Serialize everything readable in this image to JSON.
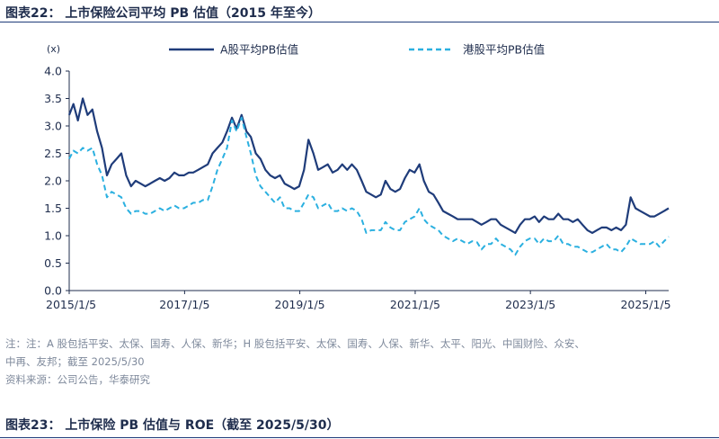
{
  "figure": {
    "title": "图表22：  上市保险公司平均 PB 估值（2015 年至今）"
  },
  "chart_data": {
    "type": "line",
    "unit_label": "(x)",
    "xlabel": "",
    "ylabel": "",
    "ylim": [
      0,
      4.0
    ],
    "yticks": [
      "0.0",
      "0.5",
      "1.0",
      "1.5",
      "2.0",
      "2.5",
      "3.0",
      "3.5",
      "4.0"
    ],
    "xlim": [
      "2015/1/5",
      "2025/5/30"
    ],
    "xticks": [
      "2015/1/5",
      "2017/1/5",
      "2019/1/5",
      "2021/1/5",
      "2023/1/5",
      "2025/1/5"
    ],
    "grid": false,
    "legend_position": "top",
    "series": [
      {
        "name": "A股平均PB估值",
        "color": "#1f3c7a",
        "style": "solid",
        "points": [
          [
            "2015/1/5",
            3.2
          ],
          [
            "2015/2/1",
            3.4
          ],
          [
            "2015/3/1",
            3.1
          ],
          [
            "2015/4/1",
            3.5
          ],
          [
            "2015/5/1",
            3.2
          ],
          [
            "2015/6/1",
            3.3
          ],
          [
            "2015/7/1",
            2.9
          ],
          [
            "2015/8/1",
            2.6
          ],
          [
            "2015/9/1",
            2.1
          ],
          [
            "2015/10/1",
            2.3
          ],
          [
            "2015/11/1",
            2.4
          ],
          [
            "2015/12/1",
            2.5
          ],
          [
            "2016/1/1",
            2.1
          ],
          [
            "2016/2/1",
            1.9
          ],
          [
            "2016/3/1",
            2.0
          ],
          [
            "2016/4/1",
            1.95
          ],
          [
            "2016/5/1",
            1.9
          ],
          [
            "2016/6/1",
            1.95
          ],
          [
            "2016/7/1",
            2.0
          ],
          [
            "2016/8/1",
            2.05
          ],
          [
            "2016/9/1",
            2.0
          ],
          [
            "2016/10/1",
            2.05
          ],
          [
            "2016/11/1",
            2.15
          ],
          [
            "2016/12/1",
            2.1
          ],
          [
            "2017/1/1",
            2.1
          ],
          [
            "2017/2/1",
            2.15
          ],
          [
            "2017/3/1",
            2.15
          ],
          [
            "2017/4/1",
            2.2
          ],
          [
            "2017/5/1",
            2.25
          ],
          [
            "2017/6/1",
            2.3
          ],
          [
            "2017/7/1",
            2.5
          ],
          [
            "2017/8/1",
            2.6
          ],
          [
            "2017/9/1",
            2.7
          ],
          [
            "2017/10/1",
            2.9
          ],
          [
            "2017/11/1",
            3.15
          ],
          [
            "2017/12/1",
            2.95
          ],
          [
            "2018/1/1",
            3.2
          ],
          [
            "2018/2/1",
            2.9
          ],
          [
            "2018/3/1",
            2.8
          ],
          [
            "2018/4/1",
            2.5
          ],
          [
            "2018/5/1",
            2.4
          ],
          [
            "2018/6/1",
            2.2
          ],
          [
            "2018/7/1",
            2.1
          ],
          [
            "2018/8/1",
            2.05
          ],
          [
            "2018/9/1",
            2.1
          ],
          [
            "2018/10/1",
            1.95
          ],
          [
            "2018/11/1",
            1.9
          ],
          [
            "2018/12/1",
            1.85
          ],
          [
            "2019/1/1",
            1.9
          ],
          [
            "2019/2/1",
            2.2
          ],
          [
            "2019/3/1",
            2.75
          ],
          [
            "2019/4/1",
            2.5
          ],
          [
            "2019/5/1",
            2.2
          ],
          [
            "2019/6/1",
            2.25
          ],
          [
            "2019/7/1",
            2.3
          ],
          [
            "2019/8/1",
            2.15
          ],
          [
            "2019/9/1",
            2.2
          ],
          [
            "2019/10/1",
            2.3
          ],
          [
            "2019/11/1",
            2.2
          ],
          [
            "2019/12/1",
            2.3
          ],
          [
            "2020/1/1",
            2.2
          ],
          [
            "2020/2/1",
            2.0
          ],
          [
            "2020/3/1",
            1.8
          ],
          [
            "2020/4/1",
            1.75
          ],
          [
            "2020/5/1",
            1.7
          ],
          [
            "2020/6/1",
            1.75
          ],
          [
            "2020/7/1",
            2.0
          ],
          [
            "2020/8/1",
            1.85
          ],
          [
            "2020/9/1",
            1.8
          ],
          [
            "2020/10/1",
            1.85
          ],
          [
            "2020/11/1",
            2.05
          ],
          [
            "2020/12/1",
            2.2
          ],
          [
            "2021/1/1",
            2.15
          ],
          [
            "2021/2/1",
            2.3
          ],
          [
            "2021/3/1",
            2.0
          ],
          [
            "2021/4/1",
            1.8
          ],
          [
            "2021/5/1",
            1.75
          ],
          [
            "2021/6/1",
            1.6
          ],
          [
            "2021/7/1",
            1.45
          ],
          [
            "2021/8/1",
            1.4
          ],
          [
            "2021/9/1",
            1.35
          ],
          [
            "2021/10/1",
            1.3
          ],
          [
            "2021/11/1",
            1.3
          ],
          [
            "2021/12/1",
            1.3
          ],
          [
            "2022/1/1",
            1.3
          ],
          [
            "2022/2/1",
            1.25
          ],
          [
            "2022/3/1",
            1.2
          ],
          [
            "2022/4/1",
            1.25
          ],
          [
            "2022/5/1",
            1.3
          ],
          [
            "2022/6/1",
            1.3
          ],
          [
            "2022/7/1",
            1.2
          ],
          [
            "2022/8/1",
            1.15
          ],
          [
            "2022/9/1",
            1.1
          ],
          [
            "2022/10/1",
            1.05
          ],
          [
            "2022/11/1",
            1.2
          ],
          [
            "2022/12/1",
            1.3
          ],
          [
            "2023/1/1",
            1.3
          ],
          [
            "2023/2/1",
            1.35
          ],
          [
            "2023/3/1",
            1.25
          ],
          [
            "2023/4/1",
            1.35
          ],
          [
            "2023/5/1",
            1.3
          ],
          [
            "2023/6/1",
            1.3
          ],
          [
            "2023/7/1",
            1.4
          ],
          [
            "2023/8/1",
            1.3
          ],
          [
            "2023/9/1",
            1.3
          ],
          [
            "2023/10/1",
            1.25
          ],
          [
            "2023/11/1",
            1.3
          ],
          [
            "2023/12/1",
            1.2
          ],
          [
            "2024/1/1",
            1.1
          ],
          [
            "2024/2/1",
            1.05
          ],
          [
            "2024/3/1",
            1.1
          ],
          [
            "2024/4/1",
            1.15
          ],
          [
            "2024/5/1",
            1.15
          ],
          [
            "2024/6/1",
            1.1
          ],
          [
            "2024/7/1",
            1.15
          ],
          [
            "2024/8/1",
            1.1
          ],
          [
            "2024/9/1",
            1.2
          ],
          [
            "2024/10/1",
            1.7
          ],
          [
            "2024/11/1",
            1.5
          ],
          [
            "2024/12/1",
            1.45
          ],
          [
            "2025/1/1",
            1.4
          ],
          [
            "2025/2/1",
            1.35
          ],
          [
            "2025/3/1",
            1.35
          ],
          [
            "2025/4/1",
            1.4
          ],
          [
            "2025/5/1",
            1.45
          ],
          [
            "2025/5/30",
            1.5
          ]
        ]
      },
      {
        "name": "港股平均PB估值",
        "color": "#2bb0e0",
        "style": "dashed",
        "points": [
          [
            "2015/1/5",
            2.4
          ],
          [
            "2015/2/1",
            2.55
          ],
          [
            "2015/3/1",
            2.5
          ],
          [
            "2015/4/1",
            2.6
          ],
          [
            "2015/5/1",
            2.55
          ],
          [
            "2015/6/1",
            2.6
          ],
          [
            "2015/7/1",
            2.3
          ],
          [
            "2015/8/1",
            2.1
          ],
          [
            "2015/9/1",
            1.7
          ],
          [
            "2015/10/1",
            1.8
          ],
          [
            "2015/11/1",
            1.75
          ],
          [
            "2015/12/1",
            1.7
          ],
          [
            "2016/1/1",
            1.5
          ],
          [
            "2016/2/1",
            1.4
          ],
          [
            "2016/3/1",
            1.45
          ],
          [
            "2016/4/1",
            1.45
          ],
          [
            "2016/5/1",
            1.4
          ],
          [
            "2016/6/1",
            1.4
          ],
          [
            "2016/7/1",
            1.45
          ],
          [
            "2016/8/1",
            1.5
          ],
          [
            "2016/9/1",
            1.45
          ],
          [
            "2016/10/1",
            1.5
          ],
          [
            "2016/11/1",
            1.55
          ],
          [
            "2016/12/1",
            1.5
          ],
          [
            "2017/1/1",
            1.5
          ],
          [
            "2017/2/1",
            1.55
          ],
          [
            "2017/3/1",
            1.6
          ],
          [
            "2017/4/1",
            1.6
          ],
          [
            "2017/5/1",
            1.65
          ],
          [
            "2017/6/1",
            1.65
          ],
          [
            "2017/7/1",
            1.9
          ],
          [
            "2017/8/1",
            2.2
          ],
          [
            "2017/9/1",
            2.4
          ],
          [
            "2017/10/1",
            2.6
          ],
          [
            "2017/11/1",
            3.1
          ],
          [
            "2017/12/1",
            2.9
          ],
          [
            "2018/1/1",
            3.15
          ],
          [
            "2018/2/1",
            2.8
          ],
          [
            "2018/3/1",
            2.5
          ],
          [
            "2018/4/1",
            2.1
          ],
          [
            "2018/5/1",
            1.9
          ],
          [
            "2018/6/1",
            1.8
          ],
          [
            "2018/7/1",
            1.7
          ],
          [
            "2018/8/1",
            1.6
          ],
          [
            "2018/9/1",
            1.7
          ],
          [
            "2018/10/1",
            1.5
          ],
          [
            "2018/11/1",
            1.5
          ],
          [
            "2018/12/1",
            1.45
          ],
          [
            "2019/1/1",
            1.45
          ],
          [
            "2019/2/1",
            1.6
          ],
          [
            "2019/3/1",
            1.75
          ],
          [
            "2019/4/1",
            1.7
          ],
          [
            "2019/5/1",
            1.5
          ],
          [
            "2019/6/1",
            1.55
          ],
          [
            "2019/7/1",
            1.6
          ],
          [
            "2019/8/1",
            1.45
          ],
          [
            "2019/9/1",
            1.45
          ],
          [
            "2019/10/1",
            1.5
          ],
          [
            "2019/11/1",
            1.45
          ],
          [
            "2019/12/1",
            1.5
          ],
          [
            "2020/1/1",
            1.45
          ],
          [
            "2020/2/1",
            1.3
          ],
          [
            "2020/3/1",
            1.05
          ],
          [
            "2020/4/1",
            1.1
          ],
          [
            "2020/5/1",
            1.1
          ],
          [
            "2020/6/1",
            1.1
          ],
          [
            "2020/7/1",
            1.25
          ],
          [
            "2020/8/1",
            1.15
          ],
          [
            "2020/9/1",
            1.1
          ],
          [
            "2020/10/1",
            1.1
          ],
          [
            "2020/11/1",
            1.25
          ],
          [
            "2020/12/1",
            1.3
          ],
          [
            "2021/1/1",
            1.35
          ],
          [
            "2021/2/1",
            1.5
          ],
          [
            "2021/3/1",
            1.3
          ],
          [
            "2021/4/1",
            1.2
          ],
          [
            "2021/5/1",
            1.15
          ],
          [
            "2021/6/1",
            1.1
          ],
          [
            "2021/7/1",
            1.0
          ],
          [
            "2021/8/1",
            0.95
          ],
          [
            "2021/9/1",
            0.9
          ],
          [
            "2021/10/1",
            0.95
          ],
          [
            "2021/11/1",
            0.9
          ],
          [
            "2021/12/1",
            0.85
          ],
          [
            "2022/1/1",
            0.9
          ],
          [
            "2022/2/1",
            0.88
          ],
          [
            "2022/3/1",
            0.75
          ],
          [
            "2022/4/1",
            0.85
          ],
          [
            "2022/5/1",
            0.85
          ],
          [
            "2022/6/1",
            0.95
          ],
          [
            "2022/7/1",
            0.85
          ],
          [
            "2022/8/1",
            0.8
          ],
          [
            "2022/9/1",
            0.75
          ],
          [
            "2022/10/1",
            0.65
          ],
          [
            "2022/11/1",
            0.8
          ],
          [
            "2022/12/1",
            0.9
          ],
          [
            "2023/1/1",
            0.95
          ],
          [
            "2023/2/1",
            0.95
          ],
          [
            "2023/3/1",
            0.85
          ],
          [
            "2023/4/1",
            0.95
          ],
          [
            "2023/5/1",
            0.9
          ],
          [
            "2023/6/1",
            0.9
          ],
          [
            "2023/7/1",
            1.0
          ],
          [
            "2023/8/1",
            0.85
          ],
          [
            "2023/9/1",
            0.85
          ],
          [
            "2023/10/1",
            0.8
          ],
          [
            "2023/11/1",
            0.8
          ],
          [
            "2023/12/1",
            0.75
          ],
          [
            "2024/1/1",
            0.7
          ],
          [
            "2024/2/1",
            0.7
          ],
          [
            "2024/3/1",
            0.75
          ],
          [
            "2024/4/1",
            0.8
          ],
          [
            "2024/5/1",
            0.85
          ],
          [
            "2024/6/1",
            0.75
          ],
          [
            "2024/7/1",
            0.75
          ],
          [
            "2024/8/1",
            0.7
          ],
          [
            "2024/9/1",
            0.8
          ],
          [
            "2024/10/1",
            0.95
          ],
          [
            "2024/11/1",
            0.9
          ],
          [
            "2024/12/1",
            0.85
          ],
          [
            "2025/1/1",
            0.85
          ],
          [
            "2025/2/1",
            0.85
          ],
          [
            "2025/3/1",
            0.9
          ],
          [
            "2025/4/1",
            0.8
          ],
          [
            "2025/5/1",
            0.9
          ],
          [
            "2025/5/30",
            0.98
          ]
        ]
      }
    ]
  },
  "notes": {
    "line1": "注：注：A 股包括平安、太保、国寿、人保、新华；H 股包括平安、太保、国寿、人保、新华、太平、阳光、中国财险、众安、",
    "line2": "中再、友邦；截至 2025/5/30",
    "source": "资料来源：公司公告，华泰研究"
  },
  "next_figure": {
    "title": "图表23：  上市保险 PB 估值与 ROE（截至 2025/5/30）"
  }
}
